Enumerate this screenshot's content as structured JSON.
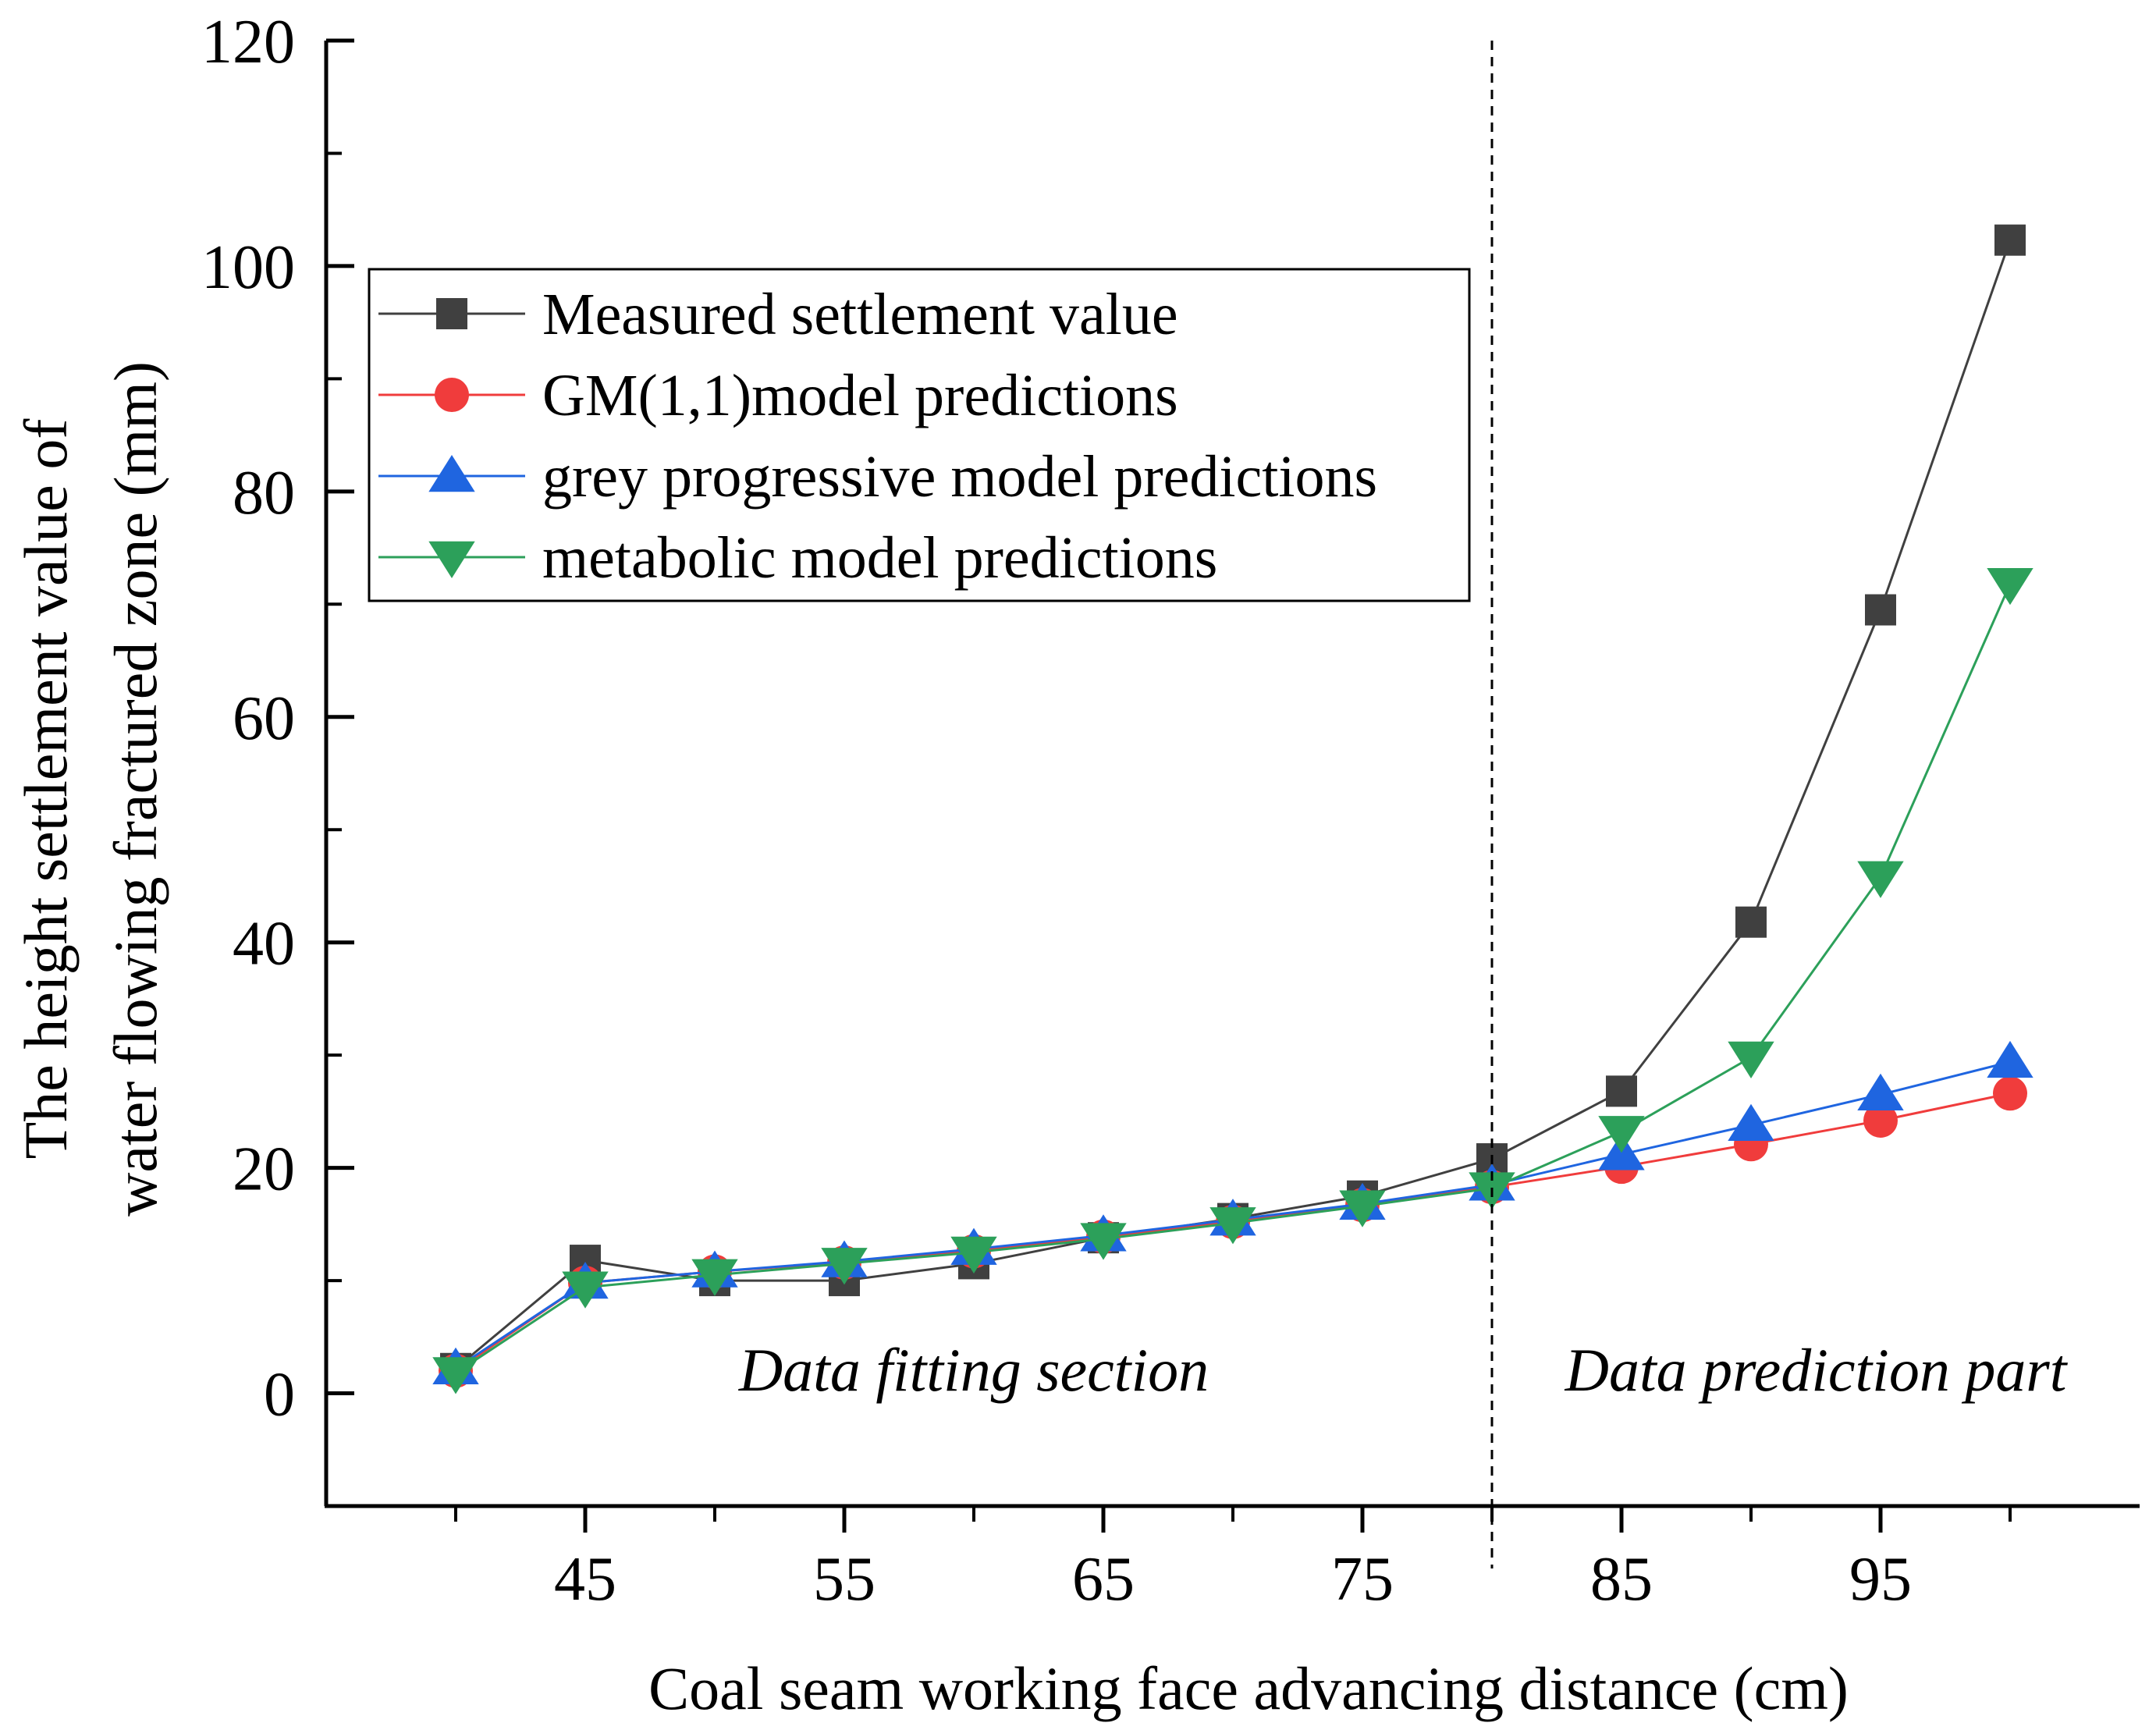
{
  "chart_data": {
    "type": "line",
    "title": "",
    "xlabel": "Coal seam working face advancing distance (cm)",
    "ylabel_lines": [
      "The height settlement value of",
      "water flowing fractured zone (mm)"
    ],
    "xlim": [
      35,
      105
    ],
    "ylim": [
      -10,
      120
    ],
    "xticks": [
      45,
      55,
      65,
      75,
      85,
      95
    ],
    "xticks_minor": [
      40,
      50,
      60,
      70,
      80,
      90,
      100
    ],
    "yticks": [
      0,
      20,
      40,
      60,
      80,
      100,
      120
    ],
    "yticks_minor": [
      -10,
      10,
      30,
      50,
      70,
      90,
      110
    ],
    "x": [
      40,
      45,
      50,
      55,
      60,
      65,
      70,
      75,
      80,
      85,
      90,
      95,
      100
    ],
    "series": [
      {
        "name": "Measured settlement value",
        "marker": "square",
        "color": "#404040",
        "line_color": "#404040",
        "values": [
          2.2,
          11.8,
          10.0,
          10.0,
          11.5,
          13.8,
          15.5,
          17.5,
          20.8,
          26.8,
          41.8,
          69.5,
          102.3
        ]
      },
      {
        "name": "GM(1,1)model predictions",
        "marker": "circle",
        "color": "#f03c3c",
        "line_color": "#f03c3c",
        "values": [
          2.0,
          9.8,
          10.8,
          11.6,
          12.6,
          13.9,
          15.2,
          16.7,
          18.3,
          20.1,
          22.1,
          24.2,
          26.6
        ]
      },
      {
        "name": "grey progressive model predictions",
        "marker": "triangle-up",
        "color": "#1f65e0",
        "line_color": "#1f65e0",
        "values": [
          2.2,
          9.8,
          10.8,
          11.7,
          12.8,
          14.0,
          15.4,
          16.8,
          18.5,
          21.2,
          23.8,
          26.5,
          29.4
        ]
      },
      {
        "name": "metabolic model predictions",
        "marker": "triangle-down",
        "color": "#2ca05a",
        "line_color": "#2ca05a",
        "values": [
          1.8,
          9.4,
          10.5,
          11.5,
          12.5,
          13.7,
          15.1,
          16.6,
          18.2,
          23.2,
          29.8,
          45.8,
          71.8
        ]
      }
    ],
    "divider_x": 80,
    "annotations": [
      {
        "text": "Data fitting section",
        "x": 60,
        "y": 3
      },
      {
        "text": "Data prediction part",
        "x": 92.5,
        "y": 3
      }
    ],
    "legend_position": "upper-left"
  }
}
